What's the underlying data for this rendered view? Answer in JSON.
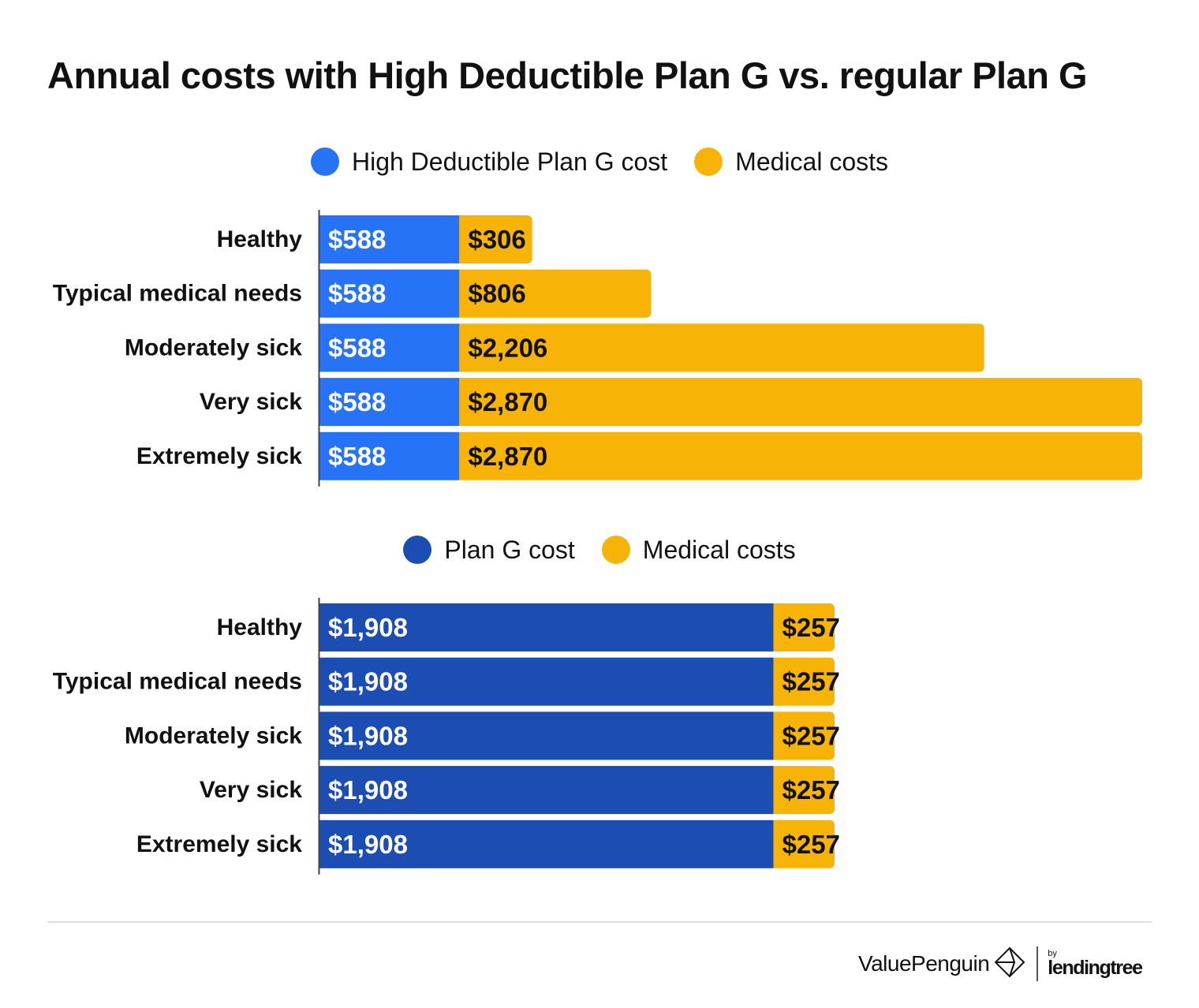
{
  "title": "Annual costs with High Deductible Plan G vs. regular Plan G",
  "colors": {
    "hd_plan": "#2673f7",
    "plan_g": "#1c4db3",
    "medical": "#f8b406",
    "axis": "#444444",
    "label_dark": "#111111",
    "label_light": "#ffffff"
  },
  "chart_data": [
    {
      "type": "bar",
      "orientation": "horizontal",
      "stacked": true,
      "categories": [
        "Healthy",
        "Typical medical needs",
        "Moderately sick",
        "Very sick",
        "Extremely sick"
      ],
      "series": [
        {
          "name": "High Deductible Plan G cost",
          "color": "#2673f7",
          "values": [
            588,
            588,
            588,
            588,
            588
          ],
          "labels": [
            "$588",
            "$588",
            "$588",
            "$588",
            "$588"
          ]
        },
        {
          "name": "Medical costs",
          "color": "#f8b406",
          "values": [
            306,
            806,
            2206,
            2870,
            2870
          ],
          "labels": [
            "$306",
            "$806",
            "$2,206",
            "$2,870",
            "$2,870"
          ]
        }
      ],
      "xlim": [
        0,
        3458
      ],
      "legend": "top-center",
      "grid": false
    },
    {
      "type": "bar",
      "orientation": "horizontal",
      "stacked": true,
      "categories": [
        "Healthy",
        "Typical medical needs",
        "Moderately sick",
        "Very sick",
        "Extremely sick"
      ],
      "series": [
        {
          "name": "Plan G cost",
          "color": "#1c4db3",
          "values": [
            1908,
            1908,
            1908,
            1908,
            1908
          ],
          "labels": [
            "$1,908",
            "$1,908",
            "$1,908",
            "$1,908",
            "$1,908"
          ]
        },
        {
          "name": "Medical costs",
          "color": "#f8b406",
          "values": [
            257,
            257,
            257,
            257,
            257
          ],
          "labels": [
            "$257",
            "$257",
            "$257",
            "$257",
            "$257"
          ]
        }
      ],
      "xlim": [
        0,
        3458
      ],
      "legend": "top-center",
      "grid": false
    }
  ],
  "footer": {
    "brand": "ValuePenguin",
    "by": "by",
    "partner": "lendingtree",
    "logo_icon": "valuepenguin-diamond-icon"
  }
}
